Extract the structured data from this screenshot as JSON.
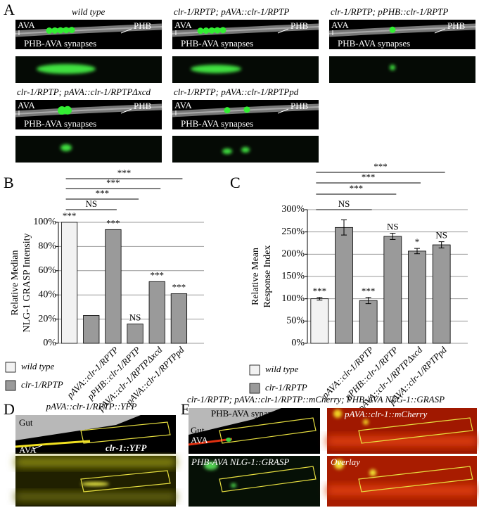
{
  "panel_a": {
    "label": "A",
    "strains": [
      {
        "title": "wild type",
        "ava": "AVA",
        "phb": "PHB",
        "synapses": "PHB-AVA synapses"
      },
      {
        "title": "clr-1/RPTP; pAVA::clr-1/RPTP",
        "ava": "AVA",
        "phb": "PHB",
        "synapses": "PHB-AVA synapses"
      },
      {
        "title": "clr-1/RPTP; pPHB::clr-1/RPTP",
        "ava": "AVA",
        "phb": "PHB",
        "synapses": "PHB-AVA synapses"
      },
      {
        "title": "clr-1/RPTP; pAVA::clr-1/RPTPΔxcd",
        "ava": "AVA",
        "phb": "PHB",
        "synapses": "PHB-AVA synapses"
      },
      {
        "title": "clr-1/RPTP; pAVA::clr-1/RPTPpd",
        "ava": "AVA",
        "phb": "PHB",
        "synapses": "PHB-AVA synapses"
      }
    ]
  },
  "chart_data": [
    {
      "type": "bar",
      "panel_label": "B",
      "ylabel": [
        "Relative Median",
        "NLG-1 GRASP Intensity"
      ],
      "categories": [
        null,
        null,
        "pAVA::clr-1/RPTP",
        "pPHB::clr-1/RPTP",
        "pAVA::clr-1/RPTPΔxcd",
        "pAVA::clr-1/RPTPpd"
      ],
      "series": [
        {
          "name": "wild type",
          "color": "#f2f2f2",
          "values": [
            100,
            null,
            null,
            null,
            null,
            null
          ]
        },
        {
          "name": "clr-1/RPTP",
          "color": "#9a9a9a",
          "values": [
            null,
            23,
            94,
            16,
            51,
            41
          ]
        }
      ],
      "ylim": [
        0,
        100
      ],
      "yticks": [
        {
          "value": 0,
          "label": "0%"
        },
        {
          "value": 20,
          "label": "20%"
        },
        {
          "value": 40,
          "label": "40%"
        },
        {
          "value": 60,
          "label": "60%"
        },
        {
          "value": 80,
          "label": "80%"
        },
        {
          "value": 100,
          "label": "100%"
        }
      ],
      "grid": true,
      "annotations": [
        "***",
        null,
        "***",
        "NS",
        "***",
        "***"
      ],
      "comparisons": [
        "NS",
        "***",
        "***",
        "***"
      ]
    },
    {
      "type": "bar",
      "panel_label": "C",
      "ylabel": [
        "Relative Mean",
        "Response Index"
      ],
      "categories": [
        null,
        null,
        "pAVA::clr-1/RPTP",
        "pPHB::clr-1/RPTP",
        "pAVA::clr-1/RPTPΔxcd",
        "pAVA::clr-1/RPTPpd"
      ],
      "series": [
        {
          "name": "wild type",
          "color": "#f2f2f2",
          "values": [
            100,
            null,
            null,
            null,
            null,
            null
          ],
          "errors": [
            3,
            null,
            null,
            null,
            null,
            null
          ]
        },
        {
          "name": "clr-1/RPTP",
          "color": "#9a9a9a",
          "values": [
            null,
            260,
            96,
            240,
            207,
            221
          ],
          "errors": [
            null,
            17,
            7,
            7,
            6,
            7
          ]
        }
      ],
      "ylim": [
        0,
        300
      ],
      "yticks": [
        {
          "value": 0,
          "label": "0%"
        },
        {
          "value": 50,
          "label": "50%"
        },
        {
          "value": 100,
          "label": "100%"
        },
        {
          "value": 150,
          "label": "150%"
        },
        {
          "value": 200,
          "label": "200%"
        },
        {
          "value": 250,
          "label": "250%"
        },
        {
          "value": 300,
          "label": "300%"
        }
      ],
      "grid": true,
      "annotations": [
        "***",
        null,
        "***",
        "NS",
        "*",
        "NS"
      ],
      "comparisons": [
        "NS",
        "***",
        "***",
        "***"
      ]
    }
  ],
  "panel_d": {
    "label": "D",
    "title": "pAVA::clr-1/RPTP::YFP",
    "gut": "Gut",
    "ava": "AVA",
    "marker": "clr-1::YFP"
  },
  "panel_e": {
    "label": "E",
    "title": "clr-1/RPTP; pAVA::clr-1/RPTP::mCherry; PHB-AVA NLG-1::GRASP",
    "synapses": "PHB-AVA synapses",
    "gut": "Gut",
    "ava": "AVA",
    "mcherry": "pAVA::clr-1::mCherry",
    "grasp": "PHB-AVA NLG-1::GRASP",
    "overlay": "Overlay"
  }
}
